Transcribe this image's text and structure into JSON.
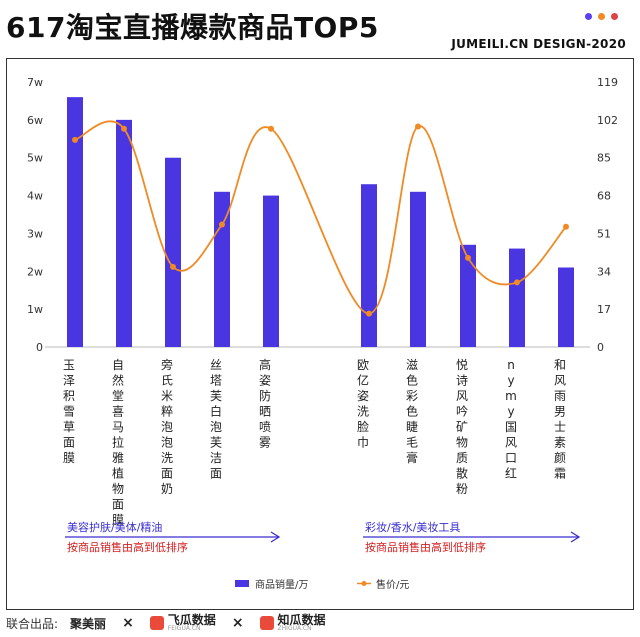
{
  "header": {
    "title": "617淘宝直播爆款商品TOP5",
    "credit": "JUMEILI.CN DESIGN-2020",
    "dot_colors": [
      "#5b3ff0",
      "#f08a24",
      "#d44"
    ]
  },
  "chart_data": {
    "type": "bar+line",
    "groups": [
      {
        "label": "美容护肤/美体/精油",
        "sublabel": "按商品销售由高到低排序"
      },
      {
        "label": "彩妆/香水/美妆工具",
        "sublabel": "按商品销售由高到低排序"
      }
    ],
    "categories": [
      "玉泽积雪草面膜",
      "自然堂喜马拉雅植物面膜",
      "旁氏米粹泡泡洗面奶",
      "丝塔芙白泡芙洁面",
      "高姿防晒喷雾",
      "欧亿姿洗脸巾",
      "滋色彩色睫毛膏",
      "悦诗风吟矿物质散粉",
      "nymy国风口红",
      "和风雨男士素颜霜"
    ],
    "series": [
      {
        "name": "商品销量/万",
        "type": "bar",
        "axis": "left",
        "color": "#4a36e0",
        "values": [
          6.6,
          6.0,
          5.0,
          4.1,
          4.0,
          4.3,
          4.1,
          2.7,
          2.6,
          2.1
        ]
      },
      {
        "name": "售价/元",
        "type": "line",
        "axis": "right",
        "color": "#f08a24",
        "values": [
          93,
          98,
          36,
          55,
          98,
          15,
          99,
          40,
          29,
          54
        ]
      }
    ],
    "left_axis": {
      "ticks": [
        "0",
        "1w",
        "2w",
        "3w",
        "4w",
        "5w",
        "6w",
        "7w"
      ],
      "range": [
        0,
        7
      ]
    },
    "right_axis": {
      "ticks": [
        "0",
        "17",
        "34",
        "51",
        "68",
        "85",
        "102",
        "119"
      ],
      "range": [
        0,
        119
      ]
    },
    "grid": false,
    "legend_position": "bottom"
  },
  "footer": {
    "prefix": "联合出品:",
    "brand1": "聚美丽",
    "brand2": "飞瓜数据",
    "brand2_sub": "FEIGUA.CN",
    "brand3": "知瓜数据",
    "brand3_sub": "ZHIGUA.CN",
    "sep": "×"
  }
}
